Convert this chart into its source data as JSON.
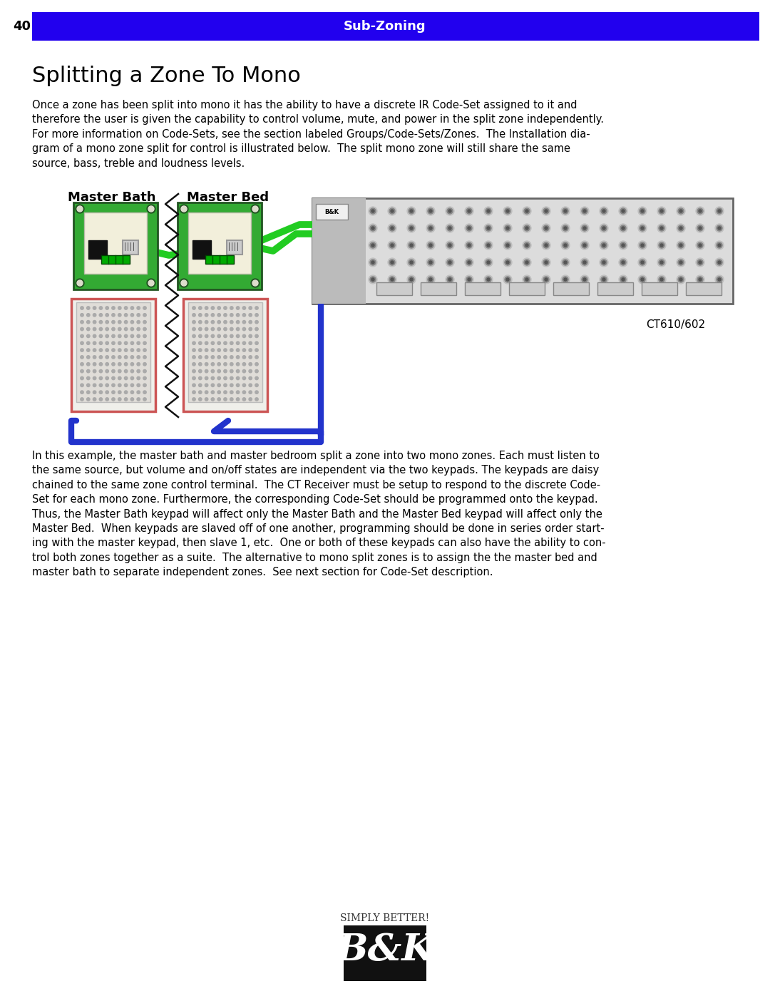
{
  "page_number": "40",
  "header_text": "Sub-Zoning",
  "header_bg_color": "#2200EE",
  "header_text_color": "#FFFFFF",
  "title": "Splitting a Zone To Mono",
  "body_text_1": "Once a zone has been split into mono it has the ability to have a discrete IR Code-Set assigned to it and\ntherefore the user is given the capability to control volume, mute, and power in the split zone independently.\nFor more information on Code-Sets, see the section labeled Groups/Code-Sets/Zones.  The Installation dia-\ngram of a mono zone split for control is illustrated below.  The split mono zone will still share the same\nsource, bass, treble and loudness levels.",
  "label_master_bath": "Master Bath",
  "label_master_bed": "Master Bed",
  "label_ct610": "CT610/602",
  "body_text_2": "In this example, the master bath and master bedroom split a zone into two mono zones. Each must listen to\nthe same source, but volume and on/off states are independent via the two keypads. The keypads are daisy\nchained to the same zone control terminal.  The CT Receiver must be setup to respond to the discrete Code-\nSet for each mono zone. Furthermore, the corresponding Code-Set should be programmed onto the keypad.\nThus, the Master Bath keypad will affect only the Master Bath and the Master Bed keypad will affect only the\nMaster Bed.  When keypads are slaved off of one another, programming should be done in series order start-\ning with the master keypad, then slave 1, etc.  One or both of these keypads can also have the ability to con-\ntrol both zones together as a suite.  The alternative to mono split zones is to assign the the master bed and\nmaster bath to separate independent zones.  See next section for Code-Set description.",
  "logo_text": "B&K",
  "logo_subtitle": "Simply Better!",
  "bg_color": "#FFFFFF",
  "text_color": "#000000"
}
